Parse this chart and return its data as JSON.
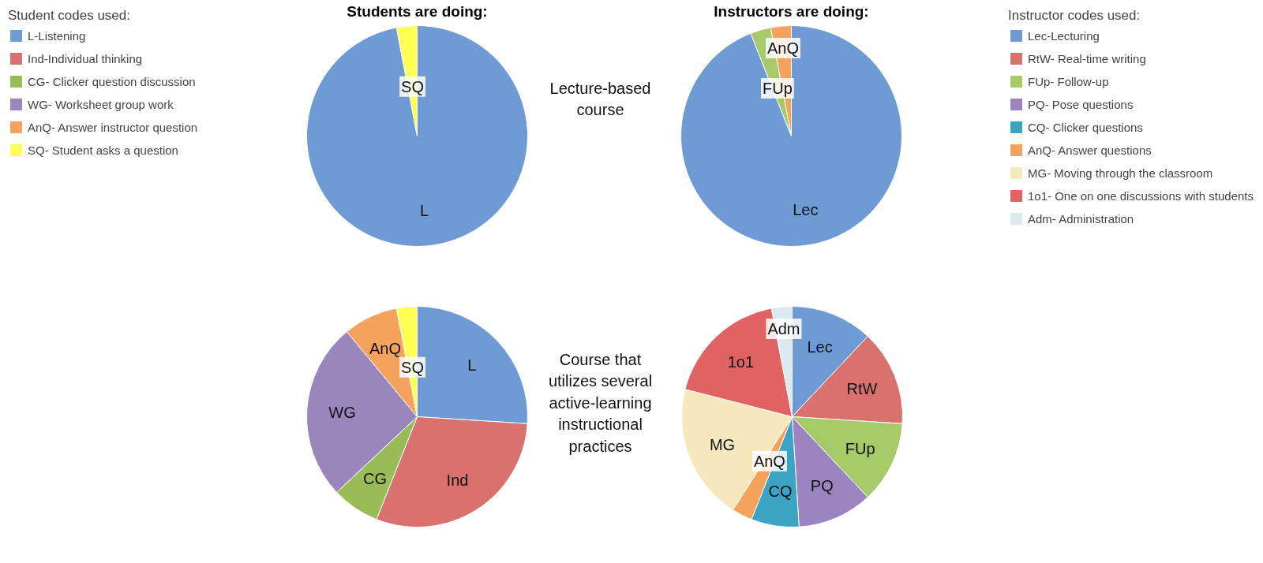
{
  "chart_data": [
    {
      "type": "pie",
      "title": "Students are doing:",
      "legend": "left",
      "legend_title": "Student codes used:",
      "annotations": [
        "Lecture-based course"
      ],
      "categories": [
        "L-Listening",
        "Ind-Individual thinking",
        "CG- Clicker question discussion",
        "WG- Worksheet group work",
        "AnQ- Answer instructor question",
        "SQ- Student asks a question"
      ],
      "values": [
        97,
        0,
        0,
        0,
        0,
        3
      ],
      "value_labels": [
        "L",
        null,
        null,
        null,
        null,
        "SQ"
      ],
      "colors": [
        "#6f9bd4",
        "#d9726e",
        "#9bbb59",
        "#9a86bd",
        "#f5a25d",
        "#ffff55"
      ]
    },
    {
      "type": "pie",
      "title": "Instructors are doing:",
      "legend": "right",
      "legend_title": "Instructor codes used:",
      "categories": [
        "Lec-Lecturing",
        "RtW- Real-time writing",
        "FUp- Follow-up",
        "PQ- Pose questions",
        "CQ- Clicker questions",
        "AnQ- Answer questions",
        "MG- Moving through the classroom",
        "1o1- One on one discussions with students",
        "Adm- Administration"
      ],
      "values": [
        94,
        0,
        3,
        0,
        0,
        3,
        0,
        0,
        0
      ],
      "value_labels": [
        "Lec",
        null,
        "FUp",
        null,
        null,
        "AnQ",
        null,
        null,
        null
      ],
      "colors": [
        "#6f9bd4",
        "#d9726e",
        "#a6c96a",
        "#9b84c0",
        "#3ba3c3",
        "#f5a25d",
        "#f5e8bd",
        "#e06262",
        "#dbe9f0"
      ]
    },
    {
      "type": "pie",
      "legend": false,
      "annotations": [
        "Course that utilizes several active-learning instructional practices"
      ],
      "categories": [
        "L",
        "Ind",
        "CG",
        "WG",
        "AnQ",
        "SQ"
      ],
      "values": [
        26,
        30,
        7,
        26,
        8,
        3
      ],
      "colors": [
        "#6f9bd4",
        "#d9726e",
        "#9bbb59",
        "#9a86bd",
        "#f5a25d",
        "#ffff55"
      ]
    },
    {
      "type": "pie",
      "legend": false,
      "categories": [
        "Lec",
        "RtW",
        "FUp",
        "PQ",
        "CQ",
        "AnQ",
        "MG",
        "1o1",
        "Adm"
      ],
      "values": [
        12,
        14,
        12,
        11,
        7,
        3,
        20,
        18,
        3
      ],
      "colors": [
        "#6f9bd4",
        "#d9726e",
        "#a6c96a",
        "#9b84c0",
        "#3ba3c3",
        "#f5a25d",
        "#f5e8bd",
        "#e06262",
        "#dbe9f0"
      ]
    }
  ]
}
